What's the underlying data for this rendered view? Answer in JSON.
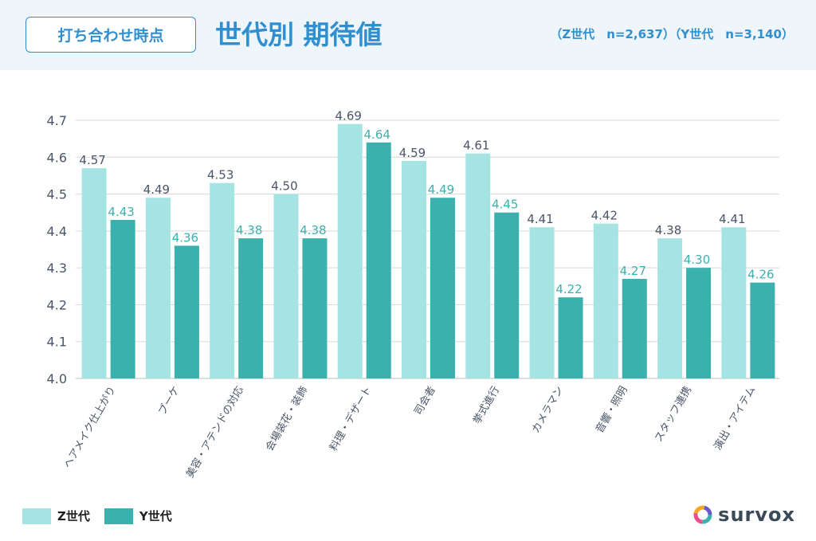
{
  "header": {
    "tag_label": "打ち合わせ時点",
    "title": "世代別 期待値",
    "samples": "（Z世代　n=2,637）（Y世代　n=3,140）"
  },
  "legend": {
    "z_label": "Z世代",
    "y_label": "Y世代"
  },
  "logo": {
    "text": "survox"
  },
  "colors": {
    "z": "#a6e4e4",
    "y": "#3bb1ae",
    "z_label": "#4a5568",
    "y_label": "#3bb1ae",
    "grid": "#d9d9d9",
    "axis_text": "#4a5568",
    "header_bg": "#eef6fb",
    "accent": "#2f8fd0"
  },
  "chart_data": {
    "type": "bar",
    "categories": [
      "ヘアメイク仕上がり",
      "ブーケ",
      "美容・アテンドの対応",
      "会場装花・装飾",
      "料理・デザート",
      "司会者",
      "挙式進行",
      "カメラマン",
      "音響・照明",
      "スタッフ連携",
      "演出・アイテム"
    ],
    "series": [
      {
        "name": "Z世代",
        "values": [
          4.57,
          4.49,
          4.53,
          4.5,
          4.69,
          4.59,
          4.61,
          4.41,
          4.42,
          4.38,
          4.41
        ]
      },
      {
        "name": "Y世代",
        "values": [
          4.43,
          4.36,
          4.38,
          4.38,
          4.64,
          4.49,
          4.45,
          4.22,
          4.27,
          4.3,
          4.26
        ]
      }
    ],
    "yticks": [
      "4.0",
      "4.1",
      "4.2",
      "4.3",
      "4.4",
      "4.5",
      "4.6",
      "4.7"
    ],
    "ylim": [
      4.0,
      4.7
    ],
    "grid": true,
    "legend_position": "bottom-left"
  }
}
